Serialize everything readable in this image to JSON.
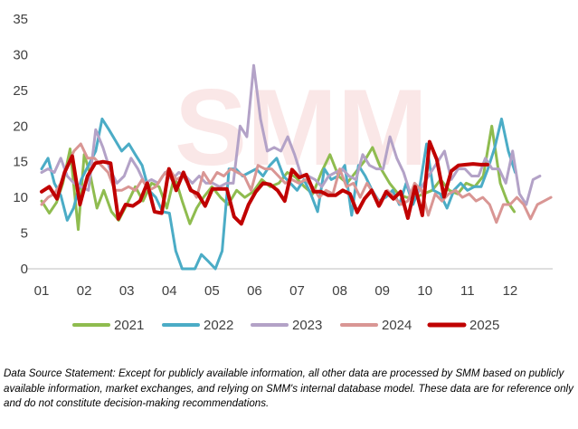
{
  "chart_data": {
    "type": "line",
    "title": "",
    "xlabel": "",
    "ylabel": "",
    "ylim": [
      0,
      35
    ],
    "yticks": [
      0,
      5,
      10,
      15,
      20,
      25,
      30,
      35
    ],
    "xlim": [
      1,
      13
    ],
    "xticks": [
      "01",
      "02",
      "03",
      "04",
      "05",
      "06",
      "07",
      "08",
      "09",
      "10",
      "11",
      "12"
    ],
    "grid": false,
    "legend_position": "bottom",
    "watermark": "SMM",
    "series": [
      {
        "name": "2021",
        "color": "#8fbc4f",
        "width": 3,
        "x": [
          1.0,
          1.18,
          1.35,
          1.5,
          1.67,
          1.86,
          2.0,
          2.13,
          2.3,
          2.46,
          2.64,
          2.81,
          3.0,
          3.2,
          3.38,
          3.58,
          3.76,
          3.94,
          4.12,
          4.3,
          4.48,
          4.64,
          4.8,
          5.0,
          5.2,
          5.38,
          5.58,
          5.77,
          5.97,
          6.17,
          6.37,
          6.57,
          6.77,
          6.97,
          7.17,
          7.37,
          7.57,
          7.77,
          7.97,
          8.17,
          8.37,
          8.57,
          8.77,
          8.97,
          9.17,
          9.37,
          9.57,
          9.77,
          9.97,
          10.17,
          10.37,
          10.57,
          10.77,
          10.97,
          11.17,
          11.37,
          11.57,
          11.77,
          11.93,
          12.1
        ],
        "values": [
          9.5,
          7.8,
          9.3,
          12,
          16.8,
          5.5,
          16,
          13.5,
          8.5,
          11,
          8,
          6.8,
          9,
          11.5,
          9.5,
          12,
          11.5,
          8.5,
          13,
          9.5,
          6.3,
          8.5,
          10,
          11.5,
          10,
          9,
          11,
          10,
          10.8,
          12.5,
          11.5,
          12,
          13.5,
          12.8,
          11.5,
          10.5,
          13.5,
          16,
          13,
          12,
          13.5,
          15,
          17,
          14,
          12,
          10.5,
          10,
          10,
          10.5,
          11,
          12.5,
          11,
          10.5,
          12,
          11.5,
          13,
          20,
          12,
          9.5,
          8
        ]
      },
      {
        "name": "2022",
        "color": "#4bacc6",
        "width": 3,
        "x": [
          1.0,
          1.15,
          1.3,
          1.45,
          1.6,
          1.75,
          1.93,
          2.1,
          2.27,
          2.42,
          2.58,
          2.73,
          2.88,
          3.05,
          3.2,
          3.36,
          3.52,
          3.68,
          3.84,
          4.0,
          4.15,
          4.3,
          4.45,
          4.6,
          4.75,
          4.92,
          5.08,
          5.24,
          5.4,
          5.56,
          5.72,
          5.88,
          6.04,
          6.2,
          6.36,
          6.52,
          6.68,
          6.84,
          7.0,
          7.16,
          7.32,
          7.48,
          7.64,
          7.8,
          7.96,
          8.12,
          8.28,
          8.44,
          8.6,
          8.76,
          8.92,
          9.08,
          9.24,
          9.4,
          9.56,
          9.72,
          9.88,
          10.04,
          10.2,
          10.36,
          10.52,
          10.68,
          10.84,
          11.0,
          11.16,
          11.32,
          11.48,
          11.64,
          11.8,
          11.96,
          12.12
        ],
        "values": [
          14,
          15.5,
          12,
          10.3,
          6.8,
          8.5,
          12.5,
          14.5,
          16.5,
          21,
          19.5,
          18,
          16.5,
          17.5,
          16,
          14.5,
          11,
          10,
          8,
          7.8,
          2.5,
          0,
          0,
          0,
          2,
          1,
          0,
          2.5,
          14,
          14,
          13,
          13.5,
          14,
          13,
          14.5,
          15.5,
          13,
          12,
          11,
          12.5,
          10.5,
          8,
          14,
          12.5,
          13,
          14.5,
          7.5,
          14.5,
          13,
          11,
          9.5,
          10,
          11,
          9,
          12,
          9,
          11.5,
          17.5,
          11,
          10.5,
          8.5,
          11,
          12,
          11,
          11.5,
          11.5,
          14,
          17,
          21,
          16.5,
          13.5
        ]
      },
      {
        "name": "2023",
        "color": "#b3a2c7",
        "width": 3,
        "x": [
          1.0,
          1.15,
          1.3,
          1.45,
          1.6,
          1.76,
          1.93,
          2.1,
          2.27,
          2.44,
          2.6,
          2.77,
          2.94,
          3.1,
          3.26,
          3.42,
          3.58,
          3.74,
          3.9,
          4.06,
          4.22,
          4.38,
          4.54,
          4.7,
          4.86,
          5.02,
          5.18,
          5.34,
          5.5,
          5.66,
          5.82,
          5.98,
          6.14,
          6.3,
          6.46,
          6.62,
          6.78,
          6.94,
          7.1,
          7.26,
          7.42,
          7.58,
          7.74,
          7.9,
          8.06,
          8.22,
          8.38,
          8.54,
          8.7,
          8.86,
          9.02,
          9.18,
          9.34,
          9.5,
          9.66,
          9.82,
          9.98,
          10.14,
          10.3,
          10.46,
          10.62,
          10.78,
          10.94,
          11.1,
          11.26,
          11.42,
          11.58,
          11.74,
          11.9,
          12.06,
          12.22,
          12.38,
          12.54,
          12.7
        ],
        "values": [
          13.5,
          14,
          13.5,
          15.5,
          13,
          12,
          11.5,
          11,
          19.5,
          17,
          14,
          12,
          13,
          15.5,
          14,
          12,
          12.5,
          12,
          13.5,
          12.5,
          13.5,
          13,
          12,
          13,
          12,
          12,
          11.5,
          12,
          12,
          20,
          18.5,
          28.5,
          21,
          16.5,
          17,
          16.5,
          18.5,
          16,
          13,
          13,
          12.5,
          11.5,
          13,
          13.5,
          14,
          13,
          12.5,
          16,
          14.5,
          14,
          14,
          18.5,
          15.5,
          13.5,
          10.5,
          10.5,
          12,
          13.5,
          15,
          16.5,
          12.5,
          14,
          14,
          13,
          13,
          15.5,
          14,
          14,
          12,
          16.5,
          10.5,
          9,
          12.5,
          13
        ]
      },
      {
        "name": "2024",
        "color": "#d99694",
        "width": 3,
        "x": [
          1.0,
          1.15,
          1.3,
          1.45,
          1.6,
          1.76,
          1.92,
          2.08,
          2.24,
          2.4,
          2.56,
          2.72,
          2.88,
          3.04,
          3.2,
          3.36,
          3.52,
          3.68,
          3.84,
          4.0,
          4.16,
          4.32,
          4.48,
          4.64,
          4.8,
          4.96,
          5.12,
          5.28,
          5.44,
          5.6,
          5.76,
          5.92,
          6.08,
          6.24,
          6.4,
          6.56,
          6.72,
          6.88,
          7.04,
          7.2,
          7.36,
          7.52,
          7.68,
          7.84,
          8.0,
          8.16,
          8.32,
          8.48,
          8.64,
          8.8,
          8.96,
          9.12,
          9.28,
          9.44,
          9.6,
          9.76,
          9.92,
          10.08,
          10.24,
          10.4,
          10.56,
          10.72,
          10.88,
          11.04,
          11.2,
          11.36,
          11.52,
          11.68,
          11.84,
          12.0,
          12.16,
          12.32,
          12.48,
          12.64,
          12.8,
          12.96
        ],
        "values": [
          9,
          10,
          10.5,
          12,
          14.5,
          16.5,
          17.5,
          15.5,
          15.5,
          14.5,
          13.5,
          11,
          11,
          11.5,
          11,
          12.5,
          11,
          11.5,
          13,
          14,
          12.5,
          13,
          11.5,
          10,
          13.5,
          12,
          13.5,
          13,
          14,
          13.5,
          13,
          11,
          14.5,
          14,
          14,
          13,
          12,
          12.5,
          12,
          12.5,
          11.5,
          10,
          11,
          10.5,
          14,
          11.5,
          12,
          10,
          12,
          10.5,
          9,
          11,
          10,
          9,
          9.5,
          12,
          11,
          7.5,
          10.5,
          9.5,
          10.5,
          11,
          10,
          10.5,
          9.5,
          10,
          9,
          6.5,
          9,
          9,
          10,
          9,
          7,
          9,
          9.5,
          10
        ]
      },
      {
        "name": "2025",
        "color": "#c00000",
        "width": 4,
        "x": [
          1.0,
          1.18,
          1.36,
          1.54,
          1.72,
          1.9,
          2.08,
          2.26,
          2.44,
          2.62,
          2.8,
          2.97,
          3.14,
          3.31,
          3.48,
          3.65,
          3.82,
          3.99,
          4.16,
          4.33,
          4.5,
          4.67,
          4.84,
          5.01,
          5.18,
          5.35,
          5.52,
          5.69,
          5.86,
          6.03,
          6.2,
          6.37,
          6.54,
          6.71,
          6.88,
          7.05,
          7.22,
          7.39,
          7.56,
          7.73,
          7.9,
          8.07,
          8.24,
          8.41,
          8.58,
          8.75,
          8.92,
          9.09,
          9.26,
          9.43,
          9.6,
          9.77,
          9.94,
          10.11,
          10.28,
          10.45,
          10.62,
          10.79,
          10.96,
          11.13,
          11.3,
          11.47
        ],
        "values": [
          10.8,
          11.5,
          9.8,
          13.5,
          15.8,
          9,
          13,
          14.8,
          15,
          14.8,
          7,
          9,
          8.8,
          9.5,
          12,
          8,
          7.8,
          14,
          11,
          13.5,
          11,
          10.5,
          8.8,
          11.2,
          11.2,
          11.2,
          7.3,
          6.3,
          9,
          10.8,
          12,
          11.8,
          11,
          9.5,
          13.9,
          12.8,
          13.2,
          10.8,
          10.8,
          10.3,
          10.3,
          11,
          10.5,
          7.9,
          9.8,
          11,
          8.8,
          10.8,
          9.8,
          10.8,
          7.1,
          11.5,
          7.5,
          17.8,
          15.3,
          10.1,
          13.7,
          14.5,
          14.6,
          14.7,
          14.6,
          14.6
        ]
      }
    ]
  },
  "footer": {
    "source_statement": "Data Source Statement: Except for publicly available information, all other data are processed by SMM based on publicly available information, market exchanges, and relying on SMM's internal database model. These data are for reference only and do not constitute decision-making recommendations."
  }
}
